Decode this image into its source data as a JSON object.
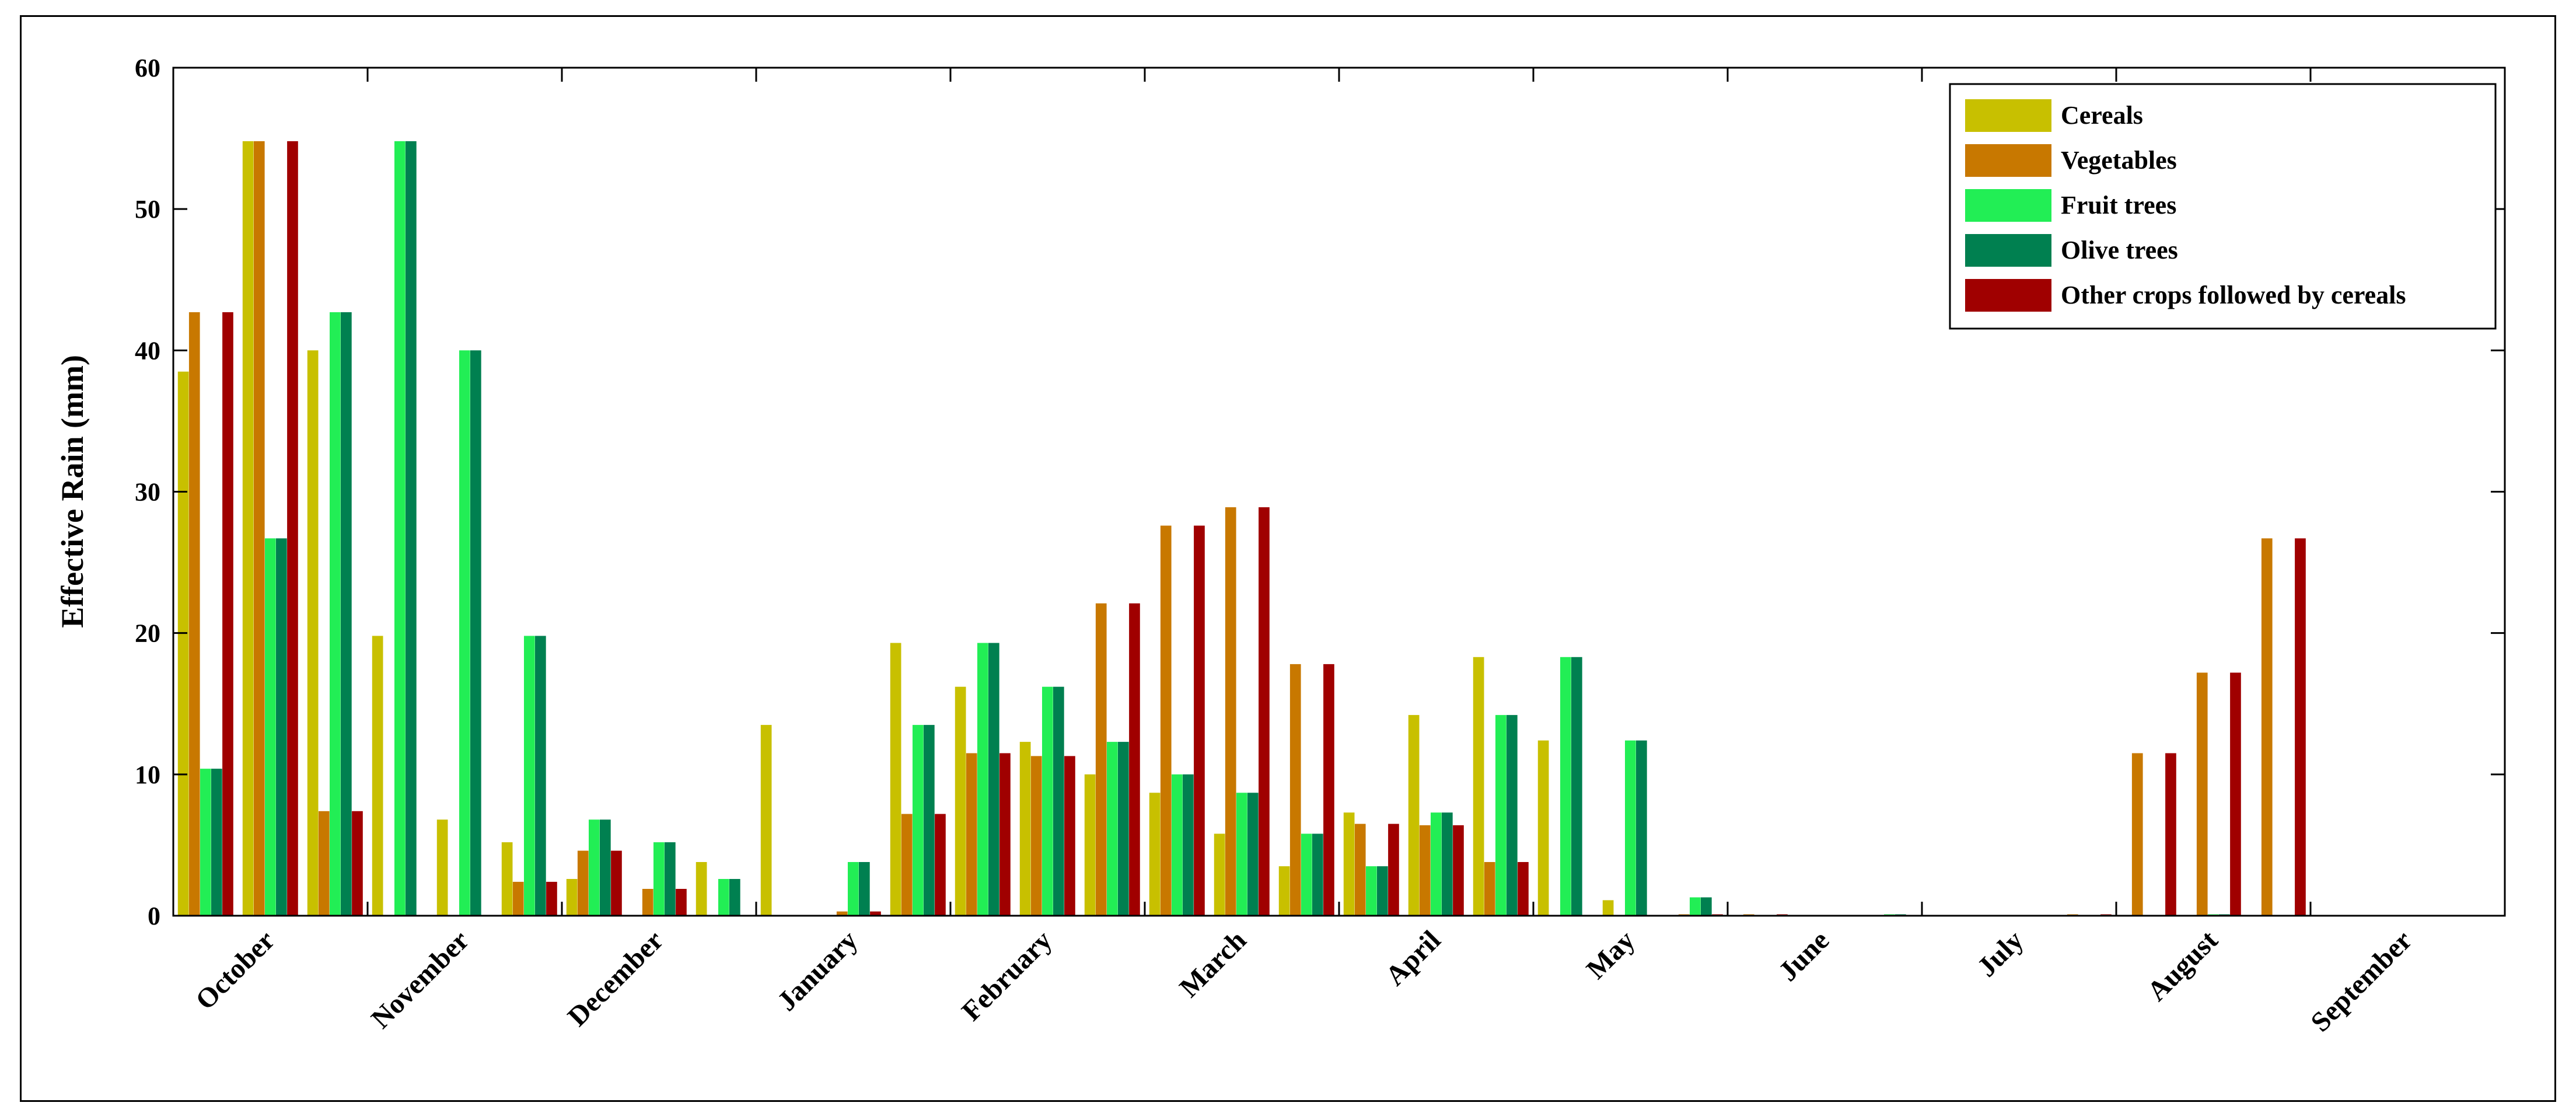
{
  "chart_data": {
    "type": "bar",
    "title": "",
    "xlabel": "",
    "ylabel": "Effective Rain (mm)",
    "ylim": [
      0,
      60
    ],
    "yticks": [
      "0",
      "10",
      "20",
      "30",
      "40",
      "50",
      "60"
    ],
    "grid": false,
    "legend_position": "top-right",
    "month_labels": [
      "October",
      "November",
      "December",
      "January",
      "February",
      "March",
      "April",
      "May",
      "June",
      "July",
      "August",
      "September"
    ],
    "categories": [
      "1",
      "2",
      "3",
      "4",
      "5",
      "6",
      "7",
      "8",
      "9",
      "10",
      "11",
      "12",
      "13",
      "14",
      "15",
      "16",
      "17",
      "18",
      "19",
      "20",
      "21",
      "22",
      "23",
      "24",
      "25",
      "26",
      "27",
      "28",
      "29",
      "30",
      "31",
      "32",
      "33",
      "34",
      "35",
      "36"
    ],
    "series": [
      {
        "name": "Cereals",
        "color": "#c8c000",
        "values": [
          38.5,
          54.8,
          40,
          19.8,
          6.8,
          5.2,
          2.6,
          0,
          3.8,
          13.5,
          0,
          19.3,
          16.2,
          12.3,
          10,
          8.7,
          5.8,
          3.5,
          7.3,
          14.2,
          18.3,
          12.4,
          1.1,
          0,
          0,
          0,
          0,
          0,
          0,
          0,
          0,
          0,
          0,
          0,
          0,
          0
        ]
      },
      {
        "name": "Vegetables",
        "color": "#c87800",
        "values": [
          42.7,
          54.8,
          7.4,
          0,
          0,
          2.4,
          4.6,
          1.9,
          0,
          0,
          0.3,
          7.2,
          11.5,
          11.3,
          22.1,
          27.6,
          28.9,
          17.8,
          6.5,
          6.4,
          3.8,
          0,
          0,
          0.1,
          0.1,
          0,
          0,
          0,
          0,
          0.1,
          11.5,
          17.2,
          26.7,
          0,
          0,
          0
        ]
      },
      {
        "name": "Fruit trees",
        "color": "#22ee55",
        "values": [
          10.4,
          26.7,
          42.7,
          54.8,
          40,
          19.8,
          6.8,
          5.2,
          2.6,
          0,
          3.8,
          13.5,
          19.3,
          16.2,
          12.3,
          10,
          8.7,
          5.8,
          3.5,
          7.3,
          14.2,
          18.3,
          12.4,
          1.3,
          0,
          0,
          0.1,
          0,
          0,
          0,
          0,
          0.1,
          0,
          0,
          0,
          0
        ]
      },
      {
        "name": "Olive trees",
        "color": "#008050",
        "values": [
          10.4,
          26.7,
          42.7,
          54.8,
          40,
          19.8,
          6.8,
          5.2,
          2.6,
          0,
          3.8,
          13.5,
          19.3,
          16.2,
          12.3,
          10,
          8.7,
          5.8,
          3.5,
          7.3,
          14.2,
          18.3,
          12.4,
          1.3,
          0,
          0,
          0.1,
          0,
          0,
          0,
          0,
          0.1,
          0,
          0,
          0,
          0
        ]
      },
      {
        "name": "Other crops followed by cereals",
        "color": "#a00000",
        "values": [
          42.7,
          54.8,
          7.4,
          0,
          0,
          2.4,
          4.6,
          1.9,
          0,
          0,
          0.3,
          7.2,
          11.5,
          11.3,
          22.1,
          27.6,
          28.9,
          17.8,
          6.5,
          6.4,
          3.8,
          0,
          0,
          0.1,
          0.1,
          0,
          0,
          0,
          0,
          0.1,
          11.5,
          17.2,
          26.7,
          0,
          0,
          0
        ]
      }
    ]
  }
}
